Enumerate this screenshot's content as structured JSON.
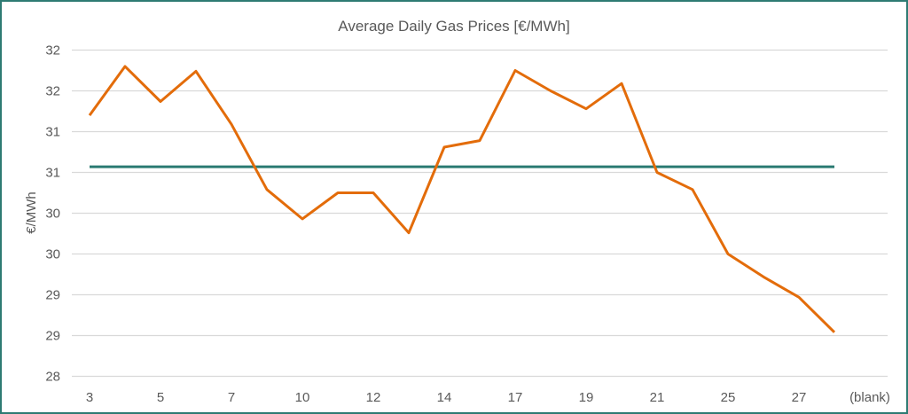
{
  "chart_data": {
    "type": "line",
    "title": "Average Daily Gas Prices [€/MWh]",
    "xlabel": "",
    "ylabel": "€/MWh",
    "ylim": [
      28,
      32
    ],
    "y_tick_values": [
      28,
      28.5,
      29,
      29.5,
      30,
      30.5,
      31,
      31.5,
      32
    ],
    "y_tick_labels": [
      "28",
      "29",
      "29",
      "30",
      "30",
      "31",
      "31",
      "32",
      "32"
    ],
    "x_tick_labels": [
      "3",
      "5",
      "7",
      "10",
      "12",
      "14",
      "17",
      "19",
      "21",
      "25",
      "27",
      "(blank)"
    ],
    "category_count": 23,
    "grid": true,
    "legend": "none",
    "series": [
      {
        "color": "#e36c0a",
        "values": [
          31.2,
          31.8,
          31.37,
          31.74,
          31.09,
          30.29,
          29.93,
          30.25,
          30.25,
          29.76,
          30.81,
          30.89,
          31.75,
          31.5,
          31.28,
          31.59,
          30.5,
          30.29,
          29.5,
          29.22,
          28.97,
          28.54,
          null
        ]
      },
      {
        "color": "#2a7a72",
        "values": [
          30.57,
          30.57,
          30.57,
          30.57,
          30.57,
          30.57,
          30.57,
          30.57,
          30.57,
          30.57,
          30.57,
          30.57,
          30.57,
          30.57,
          30.57,
          30.57,
          30.57,
          30.57,
          30.57,
          30.57,
          30.57,
          30.57,
          null
        ]
      }
    ]
  }
}
